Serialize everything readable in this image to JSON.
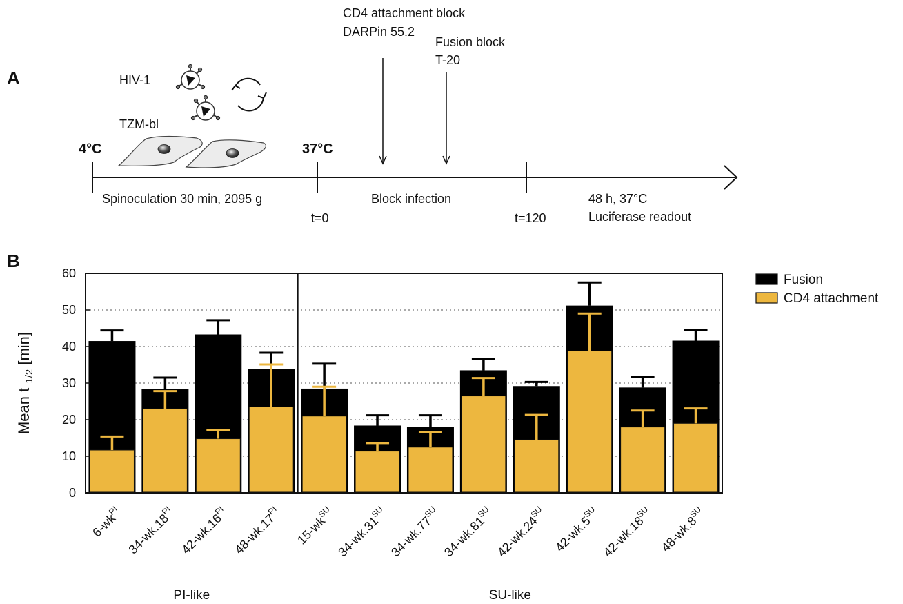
{
  "panel_a": {
    "letter": "A",
    "hiv_label": "HIV-1",
    "cell_label": "TZM-bl",
    "temp_start": "4°C",
    "temp_37": "37°C",
    "spinoculation": "Spinoculation 30 min, 2095 g",
    "t0": "t=0",
    "block_infection": "Block infection",
    "t120": "t=120",
    "readout_line1": "48 h, 37°C",
    "readout_line2": "Luciferase readout",
    "cd4_block_line1": "CD4 attachment block",
    "cd4_block_line2": "DARPin 55.2",
    "fusion_block_line1": "Fusion block",
    "fusion_block_line2": "T-20"
  },
  "panel_b": {
    "letter": "B"
  },
  "chart_data": {
    "type": "bar",
    "ylabel_main": "Mean t",
    "ylabel_sub": "1/2",
    "ylabel_unit": "[min]",
    "ylim": [
      0,
      60
    ],
    "yticks": [
      0,
      10,
      20,
      30,
      40,
      50,
      60
    ],
    "grid": "horizontal dotted",
    "legend_position": "top-right",
    "categories": [
      {
        "base": "6-wk",
        "sup": "PI"
      },
      {
        "base": "34-wk.18",
        "sup": "PI"
      },
      {
        "base": "42-wk.16",
        "sup": "PI"
      },
      {
        "base": "48-wk.17",
        "sup": "PI"
      },
      {
        "base": "15-wk",
        "sup": "SU"
      },
      {
        "base": "34-wk.31",
        "sup": "SU"
      },
      {
        "base": "34-wk.77",
        "sup": "SU"
      },
      {
        "base": "34-wk.81",
        "sup": "SU"
      },
      {
        "base": "42-wk.24",
        "sup": "SU"
      },
      {
        "base": "42-wk.5",
        "sup": "SU"
      },
      {
        "base": "42-wk.18",
        "sup": "SU"
      },
      {
        "base": "48-wk.8",
        "sup": "SU"
      }
    ],
    "groups": [
      {
        "label": "PI-like",
        "count": 4
      },
      {
        "label": "SU-like",
        "count": 8
      }
    ],
    "series": [
      {
        "name": "Fusion",
        "color": "#000000",
        "values": [
          41.5,
          28.3,
          43.3,
          33.8,
          28.5,
          18.4,
          18.0,
          33.5,
          29.2,
          51.2,
          28.8,
          41.6
        ],
        "errors": [
          2.9,
          3.2,
          3.9,
          4.5,
          6.8,
          2.8,
          3.2,
          3.0,
          1.1,
          6.3,
          2.9,
          2.9
        ]
      },
      {
        "name": "CD4 attachment",
        "color": "#EDB73F",
        "values": [
          11.7,
          23.0,
          14.8,
          23.5,
          21.0,
          11.4,
          12.5,
          26.5,
          14.5,
          38.8,
          18.0,
          19.0
        ],
        "errors": [
          3.7,
          4.8,
          2.3,
          11.6,
          8.0,
          2.2,
          4.0,
          4.9,
          6.8,
          10.2,
          4.5,
          4.1
        ]
      }
    ]
  }
}
